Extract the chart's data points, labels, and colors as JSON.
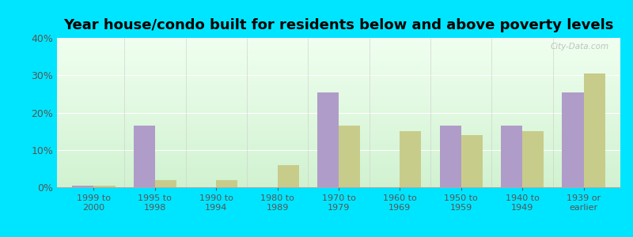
{
  "title": "Year house/condo built for residents below and above poverty levels",
  "categories": [
    "1999 to\n2000",
    "1995 to\n1998",
    "1990 to\n1994",
    "1980 to\n1989",
    "1970 to\n1979",
    "1960 to\n1969",
    "1950 to\n1959",
    "1940 to\n1949",
    "1939 or\nearlier"
  ],
  "below_poverty": [
    0.5,
    16.5,
    0.0,
    0.0,
    25.5,
    0.0,
    16.5,
    16.5,
    25.5
  ],
  "above_poverty": [
    0.5,
    2.0,
    2.0,
    6.0,
    16.5,
    15.0,
    14.0,
    15.0,
    30.5
  ],
  "below_color": "#b09cc8",
  "above_color": "#c8cc8a",
  "ylim": [
    0,
    40
  ],
  "yticks": [
    0,
    10,
    20,
    30,
    40
  ],
  "ytick_labels": [
    "0%",
    "10%",
    "20%",
    "30%",
    "40%"
  ],
  "outer_bg": "#00e5ff",
  "bar_width": 0.35,
  "title_fontsize": 13,
  "grid_color": "#dddddd",
  "spine_color": "#aaaaaa"
}
